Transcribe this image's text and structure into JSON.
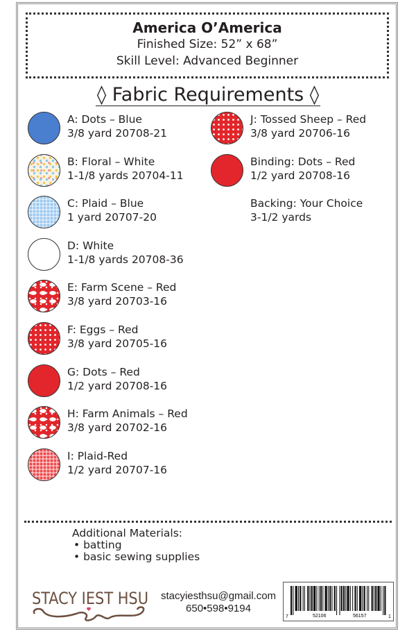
{
  "header": {
    "title": "America O’America",
    "finished_size": "Finished Size: 52” x 68”",
    "skill_level": "Skill Level: Advanced Beginner"
  },
  "section_title": "◊  Fabric Requirements  ◊",
  "fabrics_left": [
    {
      "name": "A: Dots – Blue",
      "detail": "3/8 yard  20708-21",
      "color": "#4a7fd0",
      "pattern": "solid"
    },
    {
      "name": "B: Floral – White",
      "detail": "1-1/8 yards  20704-11",
      "color": "#f7f3e6",
      "pattern": "floral"
    },
    {
      "name": "C: Plaid – Blue",
      "detail": "1 yard  20707-20",
      "color": "#9cc8f0",
      "pattern": "plaid"
    },
    {
      "name": "D: White",
      "detail": "1-1/8 yards  20708-36",
      "color": "#ffffff",
      "pattern": "solid"
    },
    {
      "name": "E: Farm Scene – Red",
      "detail": "3/8 yard  20703-16",
      "color": "#e0262b",
      "pattern": "scene"
    },
    {
      "name": "F: Eggs – Red",
      "detail": "3/8 yard  20705-16",
      "color": "#e3262b",
      "pattern": "dots"
    },
    {
      "name": "G: Dots – Red",
      "detail": "1/2 yard  20708-16",
      "color": "#e3262b",
      "pattern": "solid"
    },
    {
      "name": "H: Farm Animals – Red",
      "detail": "3/8 yard  20702-16",
      "color": "#e0262b",
      "pattern": "scene"
    },
    {
      "name": "I: Plaid-Red",
      "detail": "1/2 yard  20707-16",
      "color": "#ee4a4d",
      "pattern": "plaid"
    }
  ],
  "fabrics_right": [
    {
      "name": "J: Tossed Sheep – Red",
      "detail": "3/8 yard  20706-16",
      "color": "#e3262b",
      "pattern": "dots"
    },
    {
      "name": "Binding: Dots – Red",
      "detail": "1/2 yard  20708-16",
      "color": "#e3262b",
      "pattern": "solid"
    },
    {
      "name": "Backing: Your Choice",
      "detail": "3-1/2 yards"
    }
  ],
  "additional": {
    "heading": "Additional Materials:",
    "items": [
      "• batting",
      "• basic sewing supplies"
    ]
  },
  "footer": {
    "logo_text": "STACY IEST HSU",
    "email": "stacyiesthsu@gmail.com",
    "phone": "650•598•9194",
    "barcode": {
      "first": "7",
      "left": "52106",
      "right": "56157",
      "last": "1"
    }
  }
}
